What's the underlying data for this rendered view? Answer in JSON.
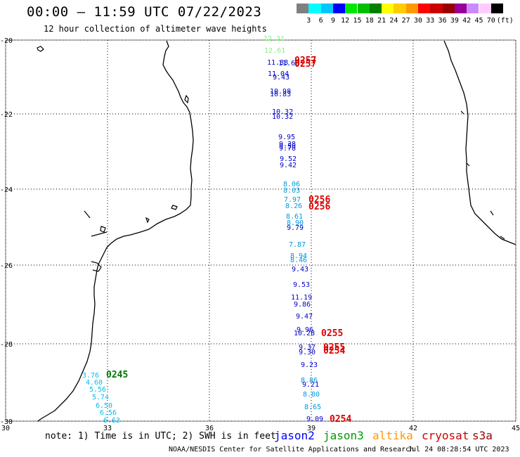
{
  "header": {
    "title": "00:00 – 11:59 UTC 07/22/2023",
    "subtitle": "12 hour collection of altimeter wave heights"
  },
  "legend": {
    "colors": [
      "#808080",
      "#00ffff",
      "#00c8ff",
      "#0000ff",
      "#00e800",
      "#00c000",
      "#008000",
      "#ffff00",
      "#ffcc00",
      "#ff9900",
      "#ff0000",
      "#cc0000",
      "#990000",
      "#990099",
      "#cc88ff",
      "#ffccff",
      "#000000"
    ],
    "labels": [
      "3",
      "6",
      "9",
      "12",
      "15",
      "18",
      "21",
      "24",
      "27",
      "30",
      "33",
      "36",
      "39",
      "42",
      "45",
      "70"
    ],
    "unit": "(ft)"
  },
  "map": {
    "lon_labels": [
      "30",
      "33",
      "36",
      "39",
      "42",
      "45"
    ],
    "lat_labels": [
      "-20",
      "-22",
      "-24",
      "-26",
      "-28",
      "-30"
    ],
    "wave_heights": [
      {
        "text": "12.31",
        "color": "#88ee88"
      },
      {
        "text": "12.61",
        "color": "#88ee88"
      },
      {
        "text": "11.88",
        "color": "#0000cc"
      },
      {
        "text": "11.66",
        "color": "#0000cc"
      },
      {
        "text": "11.04",
        "color": "#0000cc"
      },
      {
        "text": "9.43",
        "color": "#0000cc"
      },
      {
        "text": "10.98",
        "color": "#0000cc"
      },
      {
        "text": "10.83",
        "color": "#0000cc"
      },
      {
        "text": "10.32",
        "color": "#0000cc"
      },
      {
        "text": "10.32",
        "color": "#0000cc"
      },
      {
        "text": "9.95",
        "color": "#0000cc"
      },
      {
        "text": "9.38",
        "color": "#0000cc"
      },
      {
        "text": "9.58",
        "color": "#0000cc"
      },
      {
        "text": "9.78",
        "color": "#0000cc"
      },
      {
        "text": "9.52",
        "color": "#0000cc"
      },
      {
        "text": "9.42",
        "color": "#0000cc"
      },
      {
        "text": "8.06",
        "color": "#0099dd"
      },
      {
        "text": "8.03",
        "color": "#0099dd"
      },
      {
        "text": "7.97",
        "color": "#0099dd"
      },
      {
        "text": "8.26",
        "color": "#0099dd"
      },
      {
        "text": "8.61",
        "color": "#0099dd"
      },
      {
        "text": "8.90",
        "color": "#0099dd"
      },
      {
        "text": "9.79",
        "color": "#0000cc"
      },
      {
        "text": "7.87",
        "color": "#0099dd"
      },
      {
        "text": "8.94",
        "color": "#0099dd"
      },
      {
        "text": "8.46",
        "color": "#0099dd"
      },
      {
        "text": "9.43",
        "color": "#0000cc"
      },
      {
        "text": "9.53",
        "color": "#0000cc"
      },
      {
        "text": "11.19",
        "color": "#0000cc"
      },
      {
        "text": "9.86",
        "color": "#0000cc"
      },
      {
        "text": "9.47",
        "color": "#0000cc"
      },
      {
        "text": "9.96",
        "color": "#0000cc"
      },
      {
        "text": "10.28",
        "color": "#0000cc"
      },
      {
        "text": "9.37",
        "color": "#0000cc"
      },
      {
        "text": "9.30",
        "color": "#0000cc"
      },
      {
        "text": "9.23",
        "color": "#0000cc"
      },
      {
        "text": "8.86",
        "color": "#0099dd"
      },
      {
        "text": "9.21",
        "color": "#0000cc"
      },
      {
        "text": "8.80",
        "color": "#0099dd"
      },
      {
        "text": "8.65",
        "color": "#0099dd"
      },
      {
        "text": "9.09",
        "color": "#0000cc"
      },
      {
        "text": "3.76",
        "color": "#00bbee"
      },
      {
        "text": "4.60",
        "color": "#00bbee"
      },
      {
        "text": "5.56",
        "color": "#00bbee"
      },
      {
        "text": "5.74",
        "color": "#00bbee"
      },
      {
        "text": "6.50",
        "color": "#00bbee"
      },
      {
        "text": "6.56",
        "color": "#00bbee"
      },
      {
        "text": "6.63",
        "color": "#00bbee"
      }
    ],
    "pass_times": [
      {
        "text": "0257",
        "color": "#dd0000"
      },
      {
        "text": "0257",
        "color": "#dd0000"
      },
      {
        "text": "0256",
        "color": "#dd0000"
      },
      {
        "text": "0256",
        "color": "#dd0000"
      },
      {
        "text": "0255",
        "color": "#dd0000"
      },
      {
        "text": "0255",
        "color": "#dd0000"
      },
      {
        "text": "0254",
        "color": "#dd0000"
      },
      {
        "text": "0254",
        "color": "#dd0000"
      },
      {
        "text": "0245",
        "color": "#007700"
      }
    ]
  },
  "note": "note: 1) Time is in UTC; 2) SWH is in feet",
  "satellites": [
    {
      "name": "jason2",
      "color": "#0000ff"
    },
    {
      "name": "jason3",
      "color": "#009900"
    },
    {
      "name": "altika",
      "color": "#ff9900"
    },
    {
      "name": "cryosat",
      "color": "#cc0000"
    },
    {
      "name": "s3a",
      "color": "#990000"
    }
  ],
  "footer": {
    "credit": "NOAA/NESDIS Center for Satellite Applications and Research",
    "timestamp": "Jul 24 08:28:54 UTC 2023"
  }
}
